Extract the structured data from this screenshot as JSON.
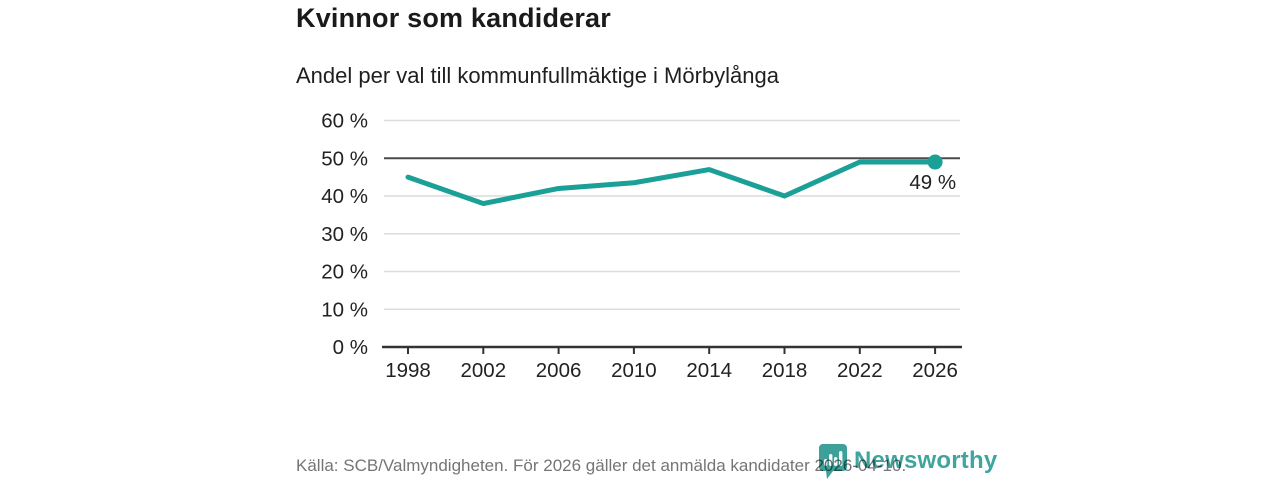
{
  "header": {
    "title": "Kvinnor som kandiderar",
    "subtitle": "Andel per val till kommunfullmäktige i Mörbylånga"
  },
  "chart_data": {
    "type": "line",
    "title": "Kvinnor som kandiderar",
    "subtitle": "Andel per val till kommunfullmäktige i Mörbylånga",
    "x": [
      1998,
      2002,
      2006,
      2010,
      2014,
      2018,
      2022,
      2026
    ],
    "values": [
      45,
      38,
      42,
      43.5,
      47,
      40,
      49,
      49
    ],
    "unit": "%",
    "ylim": [
      0,
      60
    ],
    "yticks": [
      0,
      10,
      20,
      30,
      40,
      50,
      60
    ],
    "ytick_suffix": " %",
    "grid": true,
    "highlighted_gridline": 50,
    "last_value_label": "49 %",
    "legend_position": "none"
  },
  "footer": {
    "source": "Källa: SCB/Valmyndigheten. För 2026 gäller det anmälda kandidater 2026-04-10.",
    "brand": "Newsworthy"
  },
  "colors": {
    "line": "#1aa096",
    "marker": "#1aa096",
    "grid_light": "#dcdcdc",
    "grid_dark": "#4b4b4b",
    "axis": "#333333",
    "tick_text": "#222222",
    "annotation_text": "#222222",
    "source_text": "#757575",
    "brand_teal": "#3da19a"
  }
}
